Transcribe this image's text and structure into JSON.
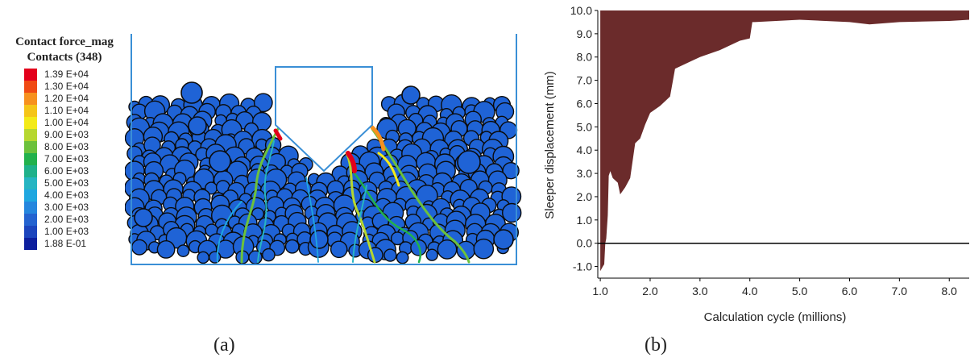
{
  "panel_a": {
    "legend_title": "Contact force_mag",
    "legend_subtitle": "Contacts (348)",
    "legend_items": [
      {
        "label": "1.39 E+04",
        "color": "#e3001b"
      },
      {
        "label": "1.30 E+04",
        "color": "#f04a14"
      },
      {
        "label": "1.20 E+04",
        "color": "#f7911e"
      },
      {
        "label": "1.10 E+04",
        "color": "#f5c518"
      },
      {
        "label": "1.00 E+04",
        "color": "#f3ea18"
      },
      {
        "label": "9.00 E+03",
        "color": "#b6d730"
      },
      {
        "label": "8.00 E+03",
        "color": "#6cc13c"
      },
      {
        "label": "7.00 E+03",
        "color": "#22b14c"
      },
      {
        "label": "6.00 E+03",
        "color": "#1fb18a"
      },
      {
        "label": "5.00 E+03",
        "color": "#26b5c2"
      },
      {
        "label": "4.00 E+03",
        "color": "#1fa7e0"
      },
      {
        "label": "3.00 E+03",
        "color": "#2586de"
      },
      {
        "label": "2.00 E+03",
        "color": "#2463d0"
      },
      {
        "label": "1.00 E+03",
        "color": "#1c45bd"
      },
      {
        "label": "1.88 E-01",
        "color": "#0d1f9e"
      }
    ],
    "caption": "(a)",
    "particle_color": "#1f63d6",
    "boundary_color": "#3a8fd6"
  },
  "panel_b": {
    "caption": "(b)"
  },
  "chart_data": {
    "type": "area",
    "title": "",
    "xlabel": "Calculation cycle (millions)",
    "ylabel": "Sleeper displacement (mm)",
    "xlim": [
      0.95,
      8.4
    ],
    "ylim": [
      -1.5,
      10.0
    ],
    "xticks": [
      "1.0",
      "2.0",
      "3.0",
      "4.0",
      "5.0",
      "6.0",
      "7.0",
      "8.0"
    ],
    "yticks": [
      "-1.0",
      "0.0",
      "1.0",
      "2.0",
      "3.0",
      "4.0",
      "5.0",
      "6.0",
      "7.0",
      "8.0",
      "9.0",
      "10.0"
    ],
    "zero_line": 0.0,
    "fill_color": "#6b2b2b",
    "envelope_lower": {
      "x": [
        1.0,
        1.05,
        1.08,
        1.1,
        1.12,
        1.15,
        1.17,
        1.2,
        1.25,
        1.3,
        1.35,
        1.4,
        1.5,
        1.6,
        1.7,
        1.8,
        1.9,
        2.0,
        2.2,
        2.4,
        2.5,
        2.8,
        3.0,
        3.4,
        3.8,
        4.0,
        4.05,
        4.1,
        5.0,
        6.0,
        6.4,
        7.0,
        8.0,
        8.4
      ],
      "y": [
        -1.2,
        -1.0,
        -0.9,
        0.0,
        0.2,
        1.2,
        2.9,
        3.1,
        2.8,
        2.7,
        2.6,
        2.1,
        2.4,
        2.8,
        4.3,
        4.5,
        5.1,
        5.6,
        5.9,
        6.3,
        7.5,
        7.8,
        8.0,
        8.3,
        8.7,
        8.8,
        9.5,
        9.5,
        9.6,
        9.5,
        9.4,
        9.5,
        9.55,
        9.6
      ]
    }
  }
}
